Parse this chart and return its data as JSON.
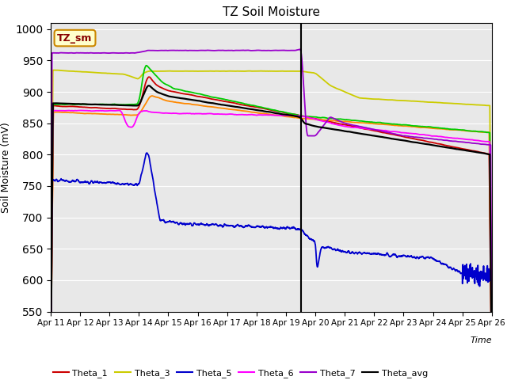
{
  "title": "TZ Soil Moisture",
  "ylabel": "Soil Moisture (mV)",
  "xlabel": "Time",
  "annotation_label": "TZ_sm",
  "ylim": [
    550,
    1010
  ],
  "yticks": [
    550,
    600,
    650,
    700,
    750,
    800,
    850,
    900,
    950,
    1000
  ],
  "date_labels": [
    "Apr 11",
    "Apr 12",
    "Apr 13",
    "Apr 14",
    "Apr 15",
    "Apr 16",
    "Apr 17",
    "Apr 18",
    "Apr 19",
    "Apr 20",
    "Apr 21",
    "Apr 22",
    "Apr 23",
    "Apr 24",
    "Apr 25",
    "Apr 26"
  ],
  "series_colors": {
    "Theta_1": "#cc0000",
    "Theta_2": "#ff8800",
    "Theta_3": "#cccc00",
    "Theta_4": "#00cc00",
    "Theta_5": "#0000cc",
    "Theta_6": "#ff00ff",
    "Theta_7": "#9900cc",
    "Theta_avg": "#000000"
  },
  "bg_color": "#e8e8e8",
  "fig_bg": "#ffffff",
  "grid_color": "#ffffff",
  "vline_day": 8.5,
  "legend_ncol": 6,
  "legend_ncol2": 2
}
